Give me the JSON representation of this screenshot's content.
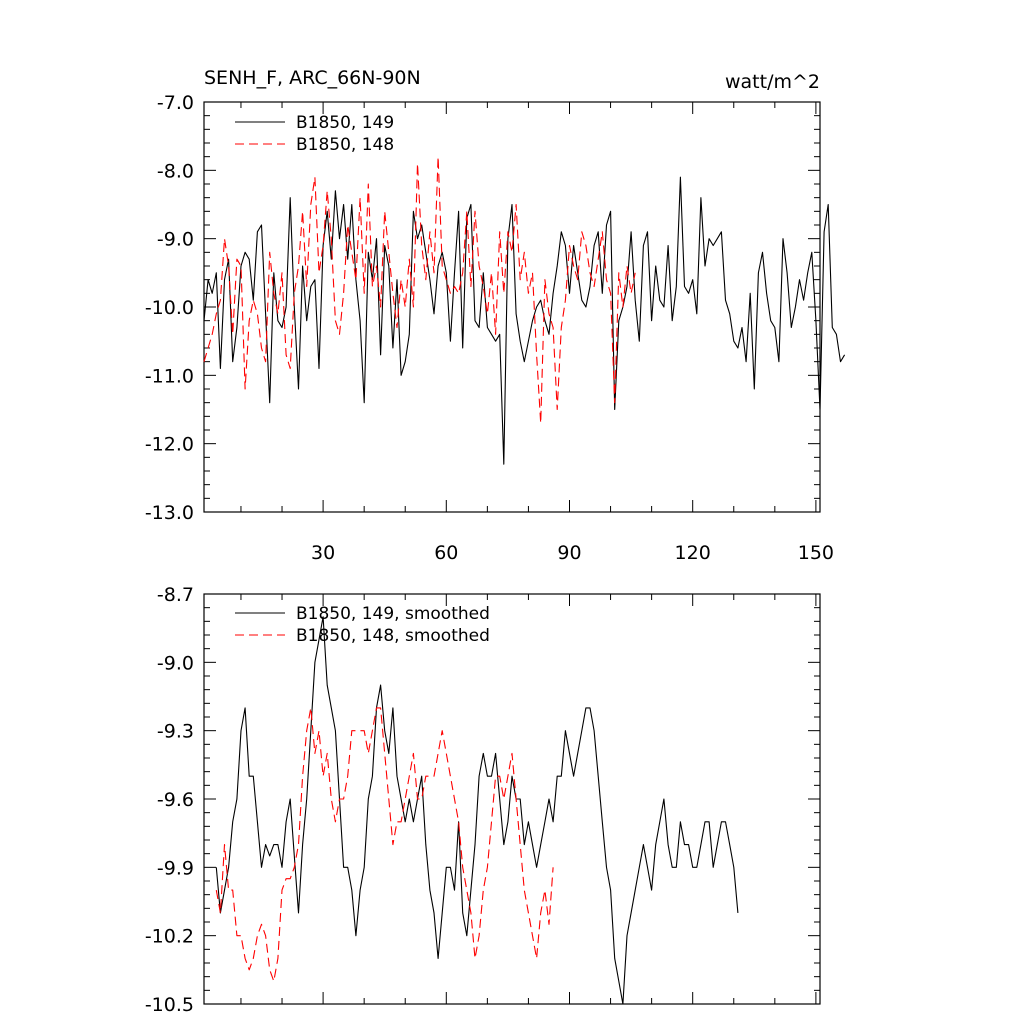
{
  "chart_data": [
    {
      "type": "line",
      "title": "SENH_F, ARC_66N-90N",
      "units": "watt/m^2",
      "ylim": [
        -13.0,
        -7.0
      ],
      "yticks": [
        "-7.0",
        "-8.0",
        "-9.0",
        "-10.0",
        "-11.0",
        "-12.0",
        "-13.0"
      ],
      "xlim": [
        1,
        151
      ],
      "xticks": [
        "30",
        "60",
        "90",
        "120",
        "150"
      ],
      "legend_placement": "top-left",
      "series": [
        {
          "name": "B1850, 149",
          "color": "#000000",
          "dash": "solid",
          "values": [
            -10.2,
            -9.6,
            -9.8,
            -9.5,
            -10.9,
            -9.6,
            -9.3,
            -10.8,
            -10.3,
            -9.4,
            -9.2,
            -9.3,
            -9.9,
            -8.9,
            -8.8,
            -10.1,
            -11.4,
            -9.5,
            -10.2,
            -10.3,
            -10.0,
            -8.4,
            -10.0,
            -11.2,
            -9.4,
            -10.2,
            -9.7,
            -9.6,
            -10.9,
            -9.1,
            -8.6,
            -9.3,
            -8.3,
            -9.0,
            -8.5,
            -9.3,
            -8.5,
            -9.6,
            -10.2,
            -11.4,
            -9.2,
            -9.6,
            -9.0,
            -10.7,
            -9.1,
            -9.4,
            -10.6,
            -9.6,
            -11.0,
            -10.8,
            -10.4,
            -8.6,
            -9.0,
            -8.8,
            -9.2,
            -9.6,
            -10.1,
            -9.4,
            -9.2,
            -9.5,
            -10.5,
            -9.5,
            -8.6,
            -10.6,
            -8.7,
            -8.5,
            -10.2,
            -10.3,
            -9.5,
            -10.3,
            -10.4,
            -10.5,
            -10.4,
            -12.3,
            -9.0,
            -8.5,
            -10.1,
            -10.5,
            -10.8,
            -10.5,
            -10.2,
            -10.0,
            -9.9,
            -10.2,
            -10.4,
            -9.8,
            -9.4,
            -8.9,
            -9.1,
            -9.8,
            -9.1,
            -9.5,
            -9.9,
            -10.0,
            -9.7,
            -9.1,
            -8.9,
            -9.8,
            -8.8,
            -8.6,
            -11.5,
            -10.2,
            -10.0,
            -9.7,
            -8.9,
            -9.9,
            -10.5,
            -9.1,
            -8.9,
            -10.2,
            -9.4,
            -9.9,
            -10.0,
            -9.1,
            -10.2,
            -9.7,
            -8.1,
            -9.7,
            -9.8,
            -9.6,
            -10.1,
            -8.4,
            -9.4,
            -9.0,
            -9.1,
            -9.0,
            -8.9,
            -9.9,
            -10.1,
            -10.5,
            -10.6,
            -10.3,
            -10.8,
            -9.8,
            -11.2,
            -9.5,
            -9.2,
            -9.8,
            -10.2,
            -10.3,
            -10.8,
            -9.0,
            -9.5,
            -10.3,
            -10.0,
            -9.6,
            -9.9,
            -9.5,
            -9.2,
            -10.2,
            -11.5,
            -8.9,
            -8.5,
            -10.3,
            -10.4,
            -10.8,
            -10.7
          ]
        },
        {
          "name": "B1850, 148",
          "color": "#ff0000",
          "dash": "dashed",
          "values": [
            -10.8,
            -10.6,
            -10.4,
            -10.1,
            -9.9,
            -9.0,
            -9.4,
            -10.4,
            -9.3,
            -9.4,
            -11.2,
            -10.2,
            -9.9,
            -10.1,
            -10.6,
            -10.8,
            -9.2,
            -9.8,
            -10.1,
            -9.5,
            -10.7,
            -10.9,
            -9.8,
            -9.4,
            -8.6,
            -9.7,
            -8.5,
            -8.1,
            -9.5,
            -9.1,
            -8.3,
            -9.0,
            -10.2,
            -10.4,
            -9.8,
            -8.8,
            -9.2,
            -9.6,
            -8.4,
            -9.8,
            -8.2,
            -9.7,
            -9.4,
            -10.0,
            -8.6,
            -9.2,
            -9.8,
            -10.3,
            -9.6,
            -10.0,
            -9.3,
            -10.0,
            -7.9,
            -9.1,
            -9.6,
            -8.9,
            -9.5,
            -7.8,
            -9.4,
            -9.6,
            -9.8,
            -9.7,
            -9.8,
            -9.5,
            -8.6,
            -9.7,
            -8.6,
            -9.4,
            -9.7,
            -10.1,
            -9.5,
            -10.4,
            -8.9,
            -9.8,
            -8.9,
            -9.2,
            -8.5,
            -9.6,
            -9.2,
            -9.8,
            -9.5,
            -10.7,
            -11.7,
            -9.6,
            -10.1,
            -10.3,
            -11.5,
            -10.3,
            -9.9,
            -9.1,
            -9.4,
            -9.6,
            -8.9,
            -9.1,
            -9.5,
            -9.7,
            -9.3,
            -8.9,
            -9.6,
            -9.8,
            -11.4,
            -9.5,
            -10.0,
            -9.4,
            -9.8,
            -9.5
          ]
        }
      ]
    },
    {
      "type": "line",
      "ylim": [
        -10.5,
        -8.7
      ],
      "yticks": [
        "-8.7",
        "-9.0",
        "-9.3",
        "-9.6",
        "-9.9",
        "-10.2",
        "-10.5"
      ],
      "xlim": [
        1,
        151
      ],
      "legend_placement": "top-left",
      "series": [
        {
          "name": "B1850, 149, smoothed",
          "color": "#000000",
          "dash": "solid",
          "values": [
            -9.9,
            -10.1,
            -10.0,
            -9.9,
            -9.7,
            -9.6,
            -9.3,
            -9.2,
            -9.5,
            -9.5,
            -9.7,
            -9.9,
            -9.8,
            -9.85,
            -9.8,
            -9.8,
            -9.9,
            -9.7,
            -9.6,
            -9.85,
            -10.1,
            -9.8,
            -9.6,
            -9.3,
            -9.0,
            -8.9,
            -8.8,
            -9.1,
            -9.2,
            -9.3,
            -9.6,
            -9.9,
            -9.9,
            -10.0,
            -10.2,
            -10.0,
            -9.9,
            -9.6,
            -9.5,
            -9.2,
            -9.1,
            -9.3,
            -9.4,
            -9.2,
            -9.5,
            -9.6,
            -9.7,
            -9.6,
            -9.7,
            -9.6,
            -9.5,
            -9.8,
            -10.0,
            -10.1,
            -10.3,
            -10.1,
            -9.9,
            -9.9,
            -10.0,
            -9.7,
            -10.1,
            -10.2,
            -10.0,
            -9.8,
            -9.5,
            -9.4,
            -9.5,
            -9.5,
            -9.4,
            -9.6,
            -9.8,
            -9.7,
            -9.5,
            -9.6,
            -9.6,
            -9.8,
            -9.7,
            -9.8,
            -9.9,
            -9.8,
            -9.7,
            -9.6,
            -9.7,
            -9.5,
            -9.5,
            -9.3,
            -9.4,
            -9.5,
            -9.4,
            -9.3,
            -9.2,
            -9.2,
            -9.3,
            -9.5,
            -9.7,
            -9.9,
            -10.0,
            -10.3,
            -10.4,
            -10.5,
            -10.2,
            -10.1,
            -10.0,
            -9.9,
            -9.8,
            -9.9,
            -10.0,
            -9.8,
            -9.7,
            -9.6,
            -9.8,
            -9.9,
            -9.9,
            -9.7,
            -9.8,
            -9.8,
            -9.9,
            -9.9,
            -9.8,
            -9.7,
            -9.7,
            -9.9,
            -9.8,
            -9.7,
            -9.7,
            -9.8,
            -9.9,
            -10.1
          ]
        },
        {
          "name": "B1850, 148, smoothed",
          "color": "#ff0000",
          "dash": "dashed",
          "values": [
            -10.0,
            -10.1,
            -9.8,
            -10.0,
            -10.0,
            -10.2,
            -10.2,
            -10.3,
            -10.35,
            -10.3,
            -10.2,
            -10.15,
            -10.2,
            -10.35,
            -10.4,
            -10.3,
            -10.0,
            -9.95,
            -9.95,
            -9.9,
            -9.8,
            -9.5,
            -9.3,
            -9.2,
            -9.4,
            -9.3,
            -9.5,
            -9.4,
            -9.6,
            -9.7,
            -9.6,
            -9.6,
            -9.5,
            -9.3,
            -9.3,
            -9.3,
            -9.3,
            -9.4,
            -9.3,
            -9.2,
            -9.2,
            -9.4,
            -9.6,
            -9.8,
            -9.7,
            -9.7,
            -9.6,
            -9.5,
            -9.4,
            -9.6,
            -9.6,
            -9.5,
            -9.5,
            -9.5,
            -9.4,
            -9.3,
            -9.4,
            -9.5,
            -9.6,
            -9.7,
            -9.9,
            -10.0,
            -10.1,
            -10.3,
            -10.2,
            -10.0,
            -9.9,
            -9.7,
            -9.5,
            -9.5,
            -9.6,
            -9.5,
            -9.4,
            -9.6,
            -9.8,
            -10.0,
            -10.1,
            -10.2,
            -10.3,
            -10.1,
            -10.0,
            -10.15,
            -9.9
          ]
        }
      ]
    }
  ]
}
